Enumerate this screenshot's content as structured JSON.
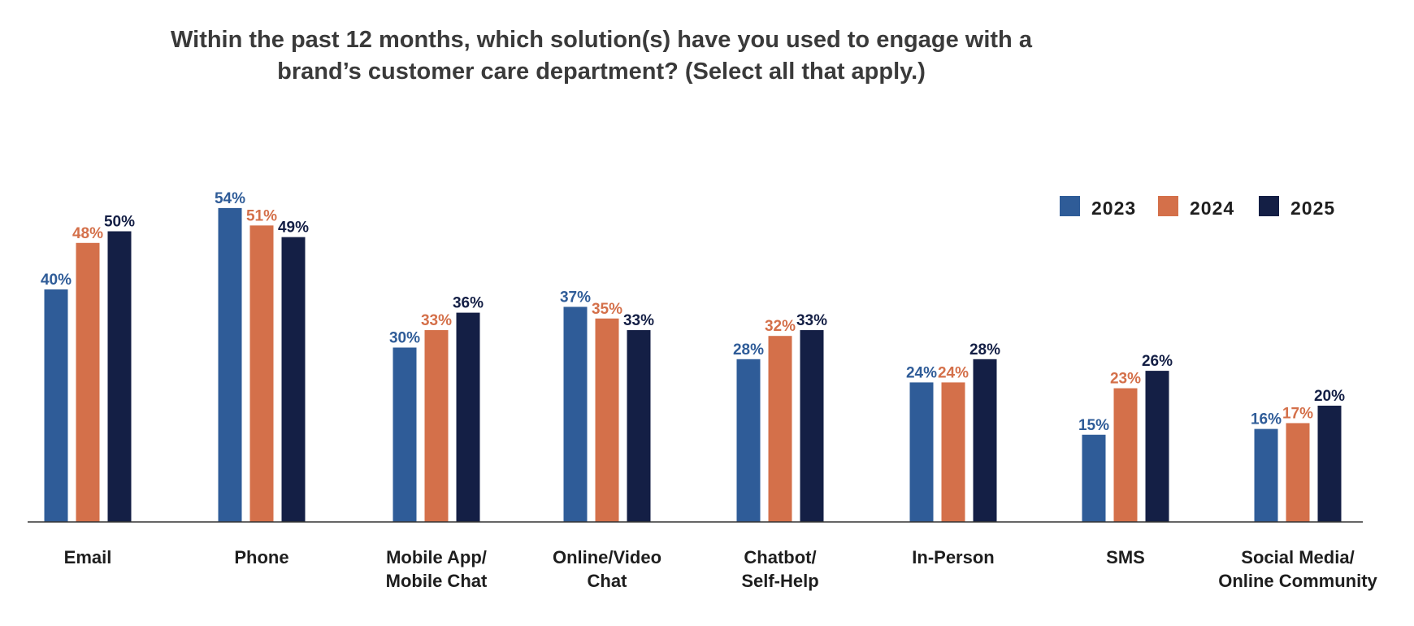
{
  "chart_data": {
    "type": "bar",
    "title_lines": [
      "Within the past 12 months, which solution(s) have you used to engage with a",
      "brand’s customer care department? (Select all that apply.)"
    ],
    "categories": [
      [
        "Email"
      ],
      [
        "Phone"
      ],
      [
        "Mobile App/",
        "Mobile Chat"
      ],
      [
        "Online/Video",
        "Chat"
      ],
      [
        "Chatbot/",
        "Self-Help"
      ],
      [
        "In-Person"
      ],
      [
        "SMS"
      ],
      [
        "Social Media/",
        "Online Community"
      ]
    ],
    "series": [
      {
        "name": "2023",
        "color": "#2f5c98",
        "values": [
          40,
          54,
          30,
          37,
          28,
          24,
          15,
          16
        ]
      },
      {
        "name": "2024",
        "color": "#d4704a",
        "values": [
          48,
          51,
          33,
          35,
          32,
          24,
          23,
          17
        ]
      },
      {
        "name": "2025",
        "color": "#141f45",
        "values": [
          50,
          49,
          36,
          33,
          33,
          28,
          26,
          20
        ]
      }
    ],
    "value_suffix": "%",
    "ylim": [
      0,
      60
    ],
    "grid": false,
    "legend_position": "top-right",
    "y_axis_visible": false
  }
}
